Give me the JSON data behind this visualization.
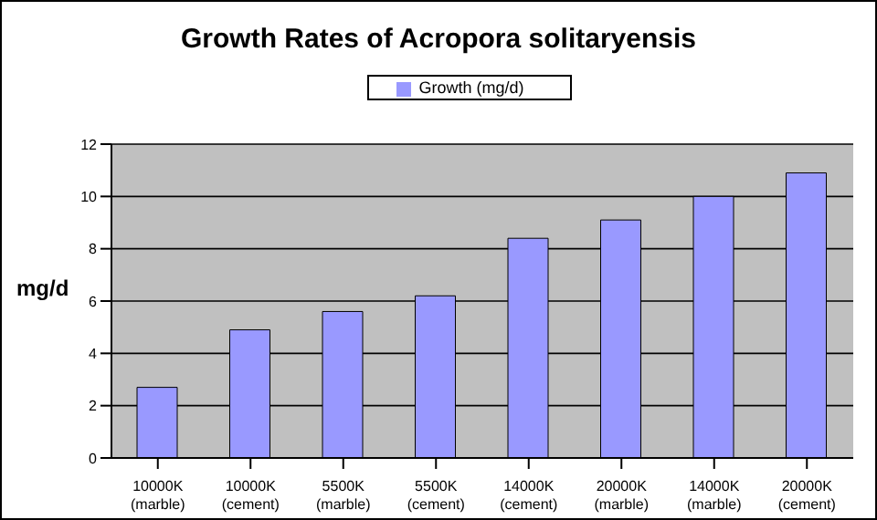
{
  "chart_data": {
    "type": "bar",
    "title": "Growth Rates of Acropora solitaryensis",
    "ylabel": "mg/d",
    "categories": [
      "10000K (marble)",
      "10000K (cement)",
      "5500K (marble)",
      "5500K (cement)",
      "14000K (cement)",
      "20000K (marble)",
      "14000K (marble)",
      "20000K (cement)"
    ],
    "series": [
      {
        "name": "Growth  (mg/d)",
        "color": "#9999ff",
        "values": [
          2.7,
          4.9,
          5.6,
          6.2,
          8.4,
          9.1,
          10,
          10.9
        ]
      }
    ],
    "ylim": [
      0,
      12
    ],
    "yticks": [
      0,
      2,
      4,
      6,
      8,
      10,
      12
    ],
    "grid": "y",
    "legend": "top"
  }
}
